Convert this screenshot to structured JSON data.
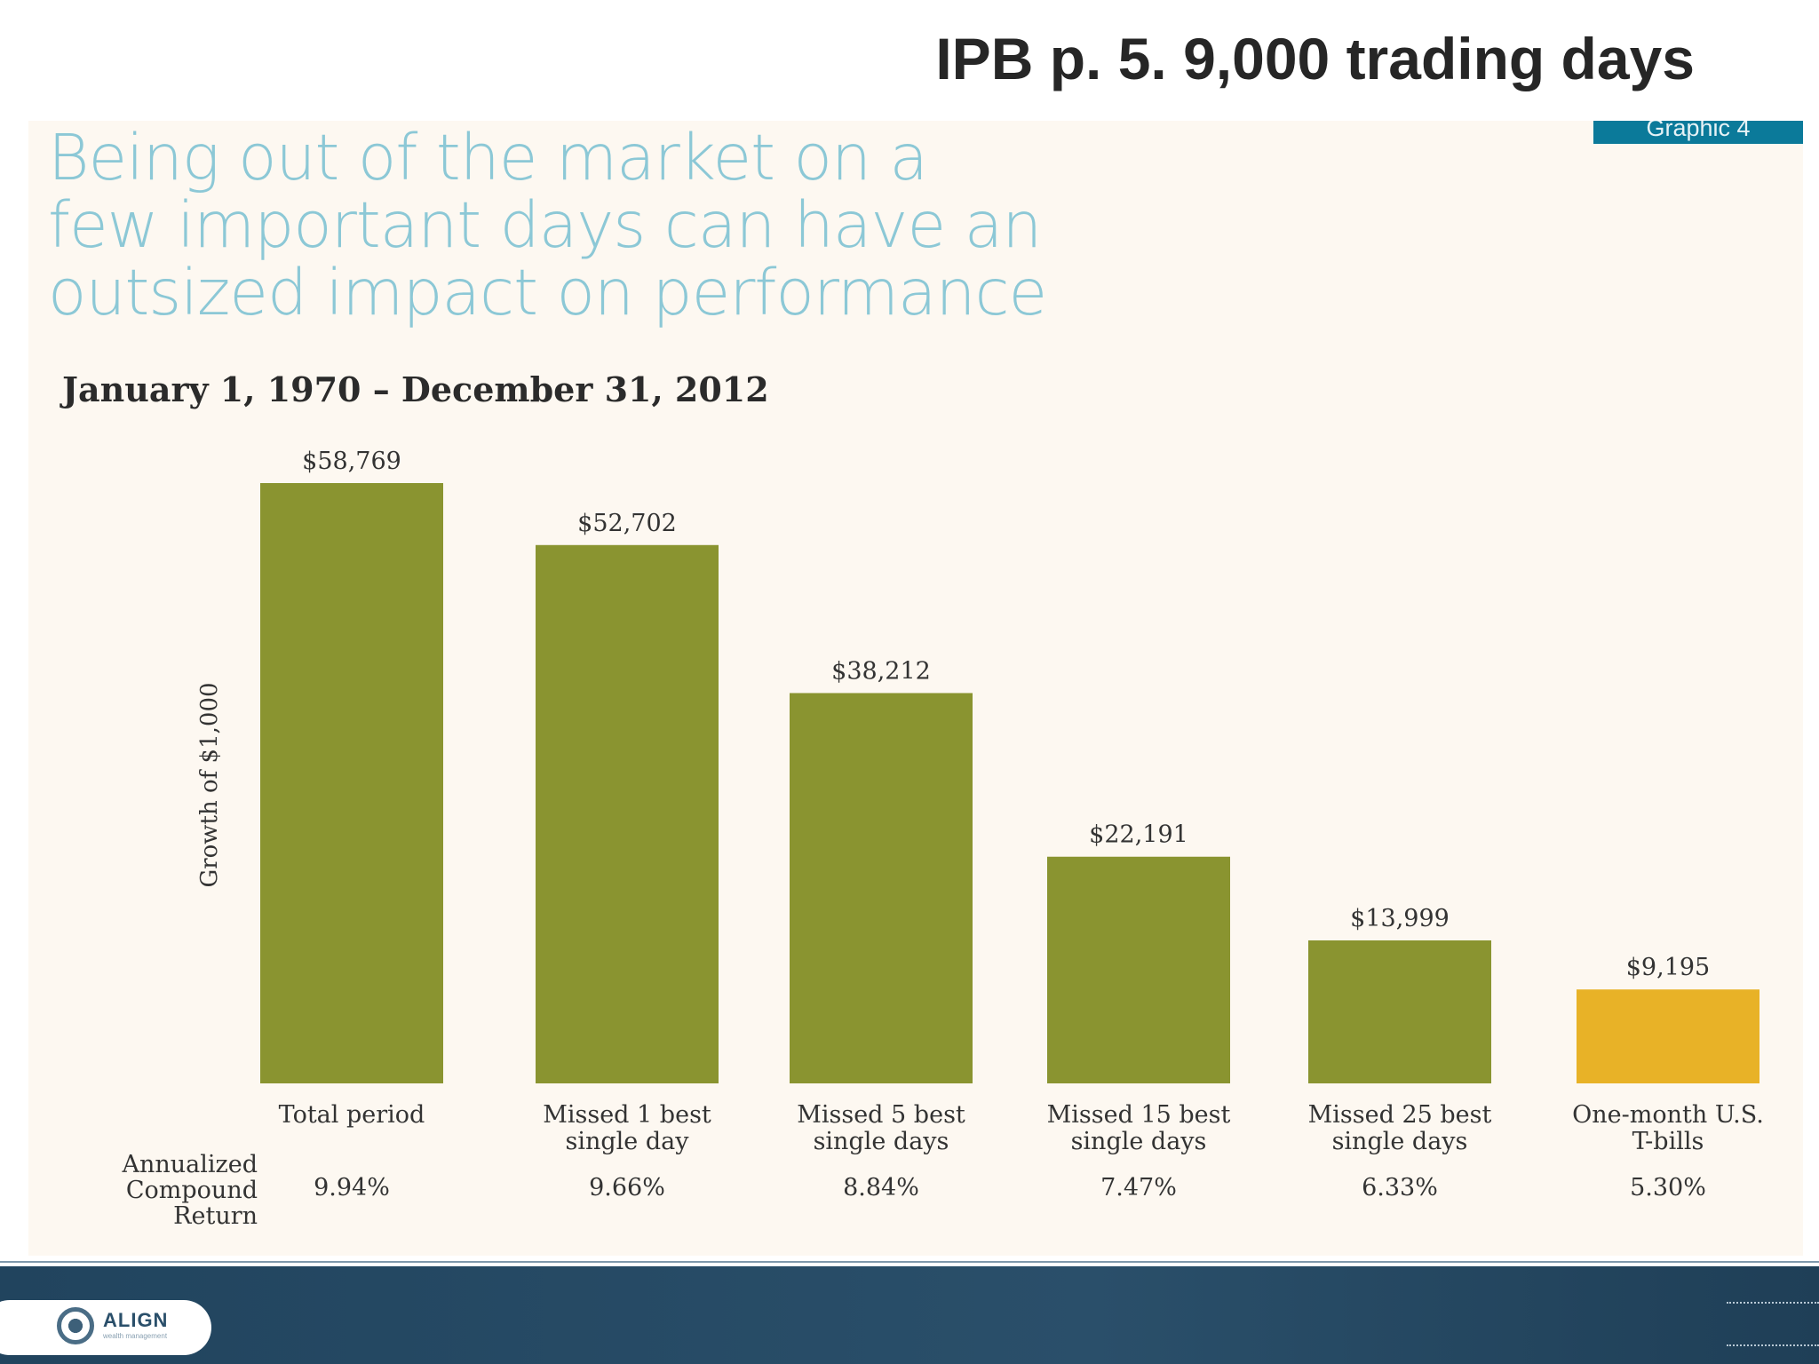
{
  "slide": {
    "title": "IPB p. 5.  9,000 trading days",
    "graphic_tag": "Graphic 4",
    "headline_lines": [
      "Being out of the market on a",
      "few important days can have an",
      "outsized impact on performance"
    ],
    "date_range": "January 1, 1970 – December 31, 2012",
    "logo_text": "ALIGN",
    "logo_subtext": "wealth management"
  },
  "colors": {
    "bar_green": "#8a9430",
    "bar_gold": "#e8b227",
    "panel_bg": "#fdf8f1",
    "headline": "#8cc8d6",
    "tag_bg": "#0b7a9a"
  },
  "chart_data": {
    "type": "bar",
    "title": "",
    "ylabel": "Growth of $1,000",
    "xlabel": "",
    "ylim": [
      0,
      58769
    ],
    "grid": false,
    "categories": [
      [
        "Total period"
      ],
      [
        "Missed 1 best",
        "single day"
      ],
      [
        "Missed 5 best",
        "single days"
      ],
      [
        "Missed 15 best",
        "single days"
      ],
      [
        "Missed 25 best",
        "single days"
      ],
      [
        "One-month U.S.",
        "T-bills"
      ]
    ],
    "values": [
      58769,
      52702,
      38212,
      22191,
      13999,
      9195
    ],
    "value_labels": [
      "$58,769",
      "$52,702",
      "$38,212",
      "$22,191",
      "$13,999",
      "$9,195"
    ],
    "bar_colors": [
      "#8a9430",
      "#8a9430",
      "#8a9430",
      "#8a9430",
      "#8a9430",
      "#e8b227"
    ],
    "return_row_label": [
      "Annualized",
      "Compound",
      "Return"
    ],
    "annualized_returns": [
      "9.94%",
      "9.66%",
      "8.84%",
      "7.47%",
      "6.33%",
      "5.30%"
    ]
  }
}
